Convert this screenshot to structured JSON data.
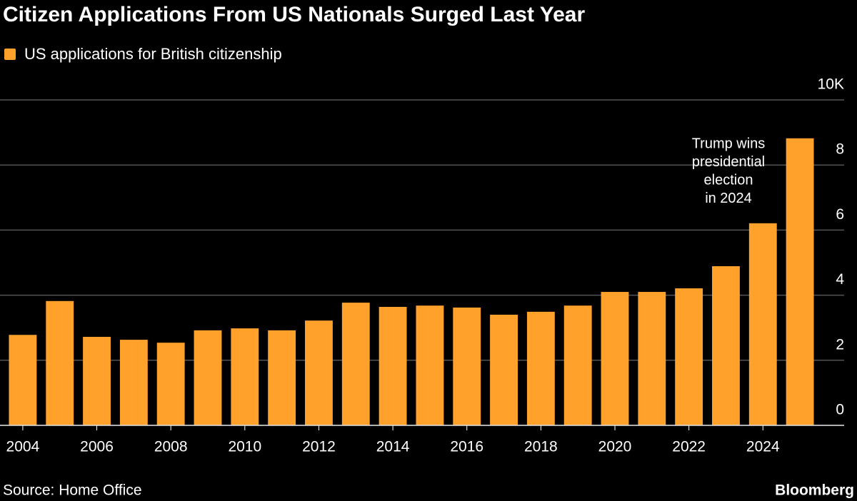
{
  "chart_data": {
    "type": "bar",
    "title": "Citizen Applications From US Nationals Surged Last Year",
    "series": [
      {
        "name": "US applications for British citizenship",
        "color": "#ffa12b",
        "values": [
          2.78,
          3.82,
          2.72,
          2.63,
          2.54,
          2.92,
          2.98,
          2.92,
          3.22,
          3.77,
          3.64,
          3.68,
          3.62,
          3.4,
          3.49,
          3.68,
          4.1,
          4.1,
          4.21,
          4.89,
          6.21,
          8.82
        ]
      }
    ],
    "categories": [
      "2004",
      null,
      "2006",
      null,
      "2008",
      null,
      "2010",
      null,
      "2012",
      null,
      "2014",
      null,
      "2016",
      null,
      "2018",
      null,
      "2020",
      null,
      "2022",
      null,
      "2024",
      null
    ],
    "ylim": [
      0,
      10
    ],
    "yticks": [
      0,
      2,
      4,
      6,
      8,
      {
        "value": 10,
        "label": "10K"
      }
    ],
    "grid": true,
    "annotation": [
      "Trump wins",
      "presidential",
      "election",
      "in 2024"
    ],
    "source": "Source: Home Office",
    "brand": "Bloomberg"
  }
}
